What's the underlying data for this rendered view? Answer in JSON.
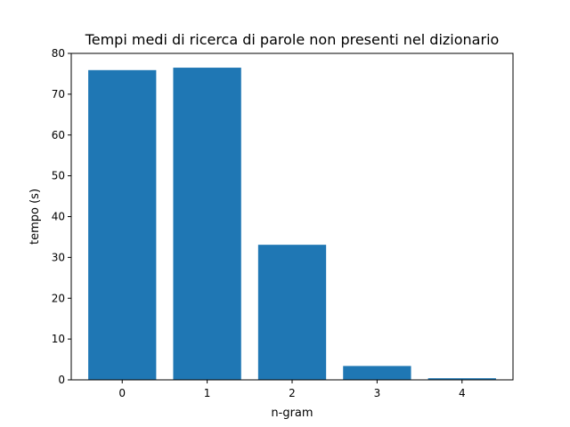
{
  "chart_data": {
    "type": "bar",
    "title": "Tempi medi di ricerca di parole non presenti nel dizionario",
    "xlabel": "n-gram",
    "ylabel": "tempo (s)",
    "categories": [
      "0",
      "1",
      "2",
      "3",
      "4"
    ],
    "values": [
      75.9,
      76.5,
      33.1,
      3.4,
      0.4
    ],
    "ylim": [
      0,
      80
    ],
    "yticks": [
      "0",
      "10",
      "20",
      "30",
      "40",
      "50",
      "60",
      "70",
      "80"
    ],
    "bar_color": "#1f77b4",
    "grid": false,
    "legend": "none"
  }
}
